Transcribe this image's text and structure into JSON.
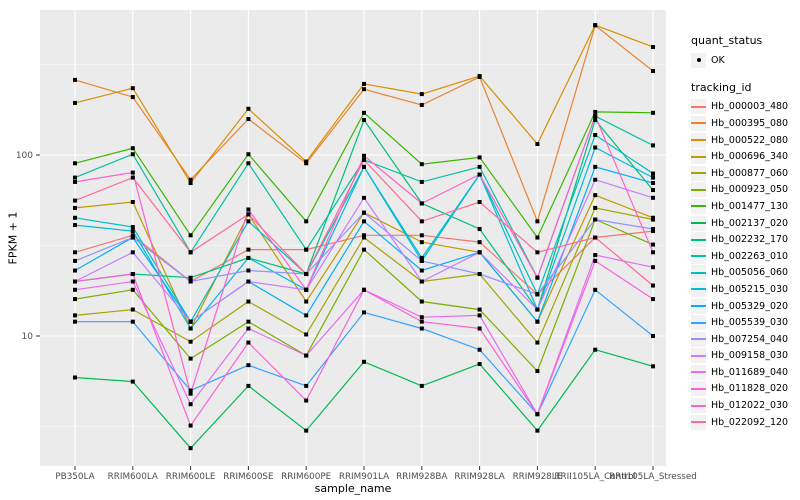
{
  "figure": {
    "panel_background": "#EBEBEB",
    "grid_color": "#FFFFFF",
    "tick_color": "#333333",
    "tick_label_color": "#4D4D4D",
    "marker_color": "#000000",
    "legend_key_background": "#F2F2F2"
  },
  "chart_data": {
    "type": "line",
    "title": "",
    "xlabel": "sample_name",
    "ylabel": "FPKM + 1",
    "y_scale": "log10",
    "ylim": [
      1.9,
      633
    ],
    "y_ticks": [
      10,
      100
    ],
    "y_minor_ticks": [
      3.162,
      31.623,
      316.23
    ],
    "grid": "on",
    "legend_position": "right",
    "categories": [
      "PB350LA",
      "RRIM600LA",
      "RRIM600LE",
      "RRIM600SE",
      "RRIM600PE",
      "RRIM901LA",
      "RRIM928BA",
      "RRIM928LA",
      "RRIM928LE",
      "RRII105LA_Control",
      "RRII105LA_Stressed"
    ],
    "series": [
      {
        "name": "Hb_000003_480",
        "color": "#F8766D",
        "values": [
          29,
          36,
          20,
          30,
          30,
          36,
          36,
          33,
          17,
          35,
          38
        ]
      },
      {
        "name": "Hb_000395_080",
        "color": "#EA8331",
        "values": [
          260,
          209,
          73,
          158,
          90,
          231,
          189,
          270,
          43,
          520,
          291
        ]
      },
      {
        "name": "Hb_000522_080",
        "color": "#D89000",
        "values": [
          194,
          234,
          70,
          180,
          92,
          247,
          217,
          273,
          115,
          522,
          395
        ]
      },
      {
        "name": "Hb_000696_340",
        "color": "#C09B00",
        "values": [
          51,
          55,
          11,
          47,
          15.5,
          48,
          33,
          29,
          12,
          60,
          45
        ]
      },
      {
        "name": "Hb_000877_060",
        "color": "#A3A500",
        "values": [
          13,
          14,
          9.3,
          15.5,
          10.2,
          35,
          20,
          22,
          9.2,
          51,
          44
        ]
      },
      {
        "name": "Hb_000923_050",
        "color": "#7CAE00",
        "values": [
          16,
          18,
          7.5,
          12,
          7.8,
          30,
          15.5,
          14,
          6.4,
          44,
          32
        ]
      },
      {
        "name": "Hb_001477_130",
        "color": "#39B600",
        "values": [
          90,
          109,
          36,
          101,
          43,
          171,
          89,
          97,
          35,
          173,
          171
        ]
      },
      {
        "name": "Hb_002137_020",
        "color": "#00BB4E",
        "values": [
          5.9,
          5.6,
          2.4,
          5.3,
          3.0,
          7.2,
          5.3,
          7.0,
          3.0,
          8.4,
          6.8
        ]
      },
      {
        "name": "Hb_002232_170",
        "color": "#00BF7D",
        "values": [
          20,
          22,
          21,
          27,
          22,
          156,
          54,
          39,
          14,
          156,
          64
        ]
      },
      {
        "name": "Hb_002263_010",
        "color": "#00C1A3",
        "values": [
          75,
          101,
          29,
          90,
          30,
          94,
          71,
          86,
          21,
          164,
          113
        ]
      },
      {
        "name": "Hb_005056_060",
        "color": "#00BFC4",
        "values": [
          45,
          40,
          12,
          43,
          22,
          86,
          27,
          78,
          17,
          129,
          79
        ]
      },
      {
        "name": "Hb_005215_030",
        "color": "#00BAE0",
        "values": [
          41,
          38,
          11,
          27,
          18,
          86,
          26,
          78,
          14,
          110,
          75
        ]
      },
      {
        "name": "Hb_005329_020",
        "color": "#00B0F6",
        "values": [
          23,
          35,
          12,
          20,
          13,
          43,
          23,
          29,
          12,
          86,
          70
        ]
      },
      {
        "name": "Hb_005539_030",
        "color": "#35A2FF",
        "values": [
          12,
          12,
          5.0,
          6.9,
          5.3,
          13.5,
          11,
          8.4,
          3.7,
          18,
          10
        ]
      },
      {
        "name": "Hb_007254_040",
        "color": "#9590FF",
        "values": [
          26,
          35,
          20,
          23,
          22,
          48,
          26,
          22,
          17,
          44,
          39
        ]
      },
      {
        "name": "Hb_009158_030",
        "color": "#C77CFF",
        "values": [
          20,
          29,
          12,
          20,
          18,
          58,
          20,
          29,
          14,
          73,
          58
        ]
      },
      {
        "name": "Hb_011689_040",
        "color": "#E76BF3",
        "values": [
          18,
          20,
          4.2,
          11,
          7.8,
          18,
          12.7,
          13,
          3.7,
          28,
          24
        ]
      },
      {
        "name": "Hb_011828_020",
        "color": "#FA62DB",
        "values": [
          20,
          22,
          3.2,
          9.2,
          4.4,
          18,
          12,
          11,
          3.7,
          26,
          16
        ]
      },
      {
        "name": "Hb_012022_030",
        "color": "#FF61CC",
        "values": [
          71,
          80,
          4.8,
          50,
          18,
          99,
          54,
          78,
          21,
          164,
          29
        ]
      },
      {
        "name": "Hb_022092_120",
        "color": "#FF6A98",
        "values": [
          56,
          75,
          29,
          47,
          22,
          94,
          43,
          55,
          29,
          35,
          19
        ]
      }
    ],
    "legend": {
      "quant_status_title": "quant_status",
      "quant_status_items": [
        {
          "label": "OK"
        }
      ],
      "tracking_id_title": "tracking_id"
    }
  }
}
